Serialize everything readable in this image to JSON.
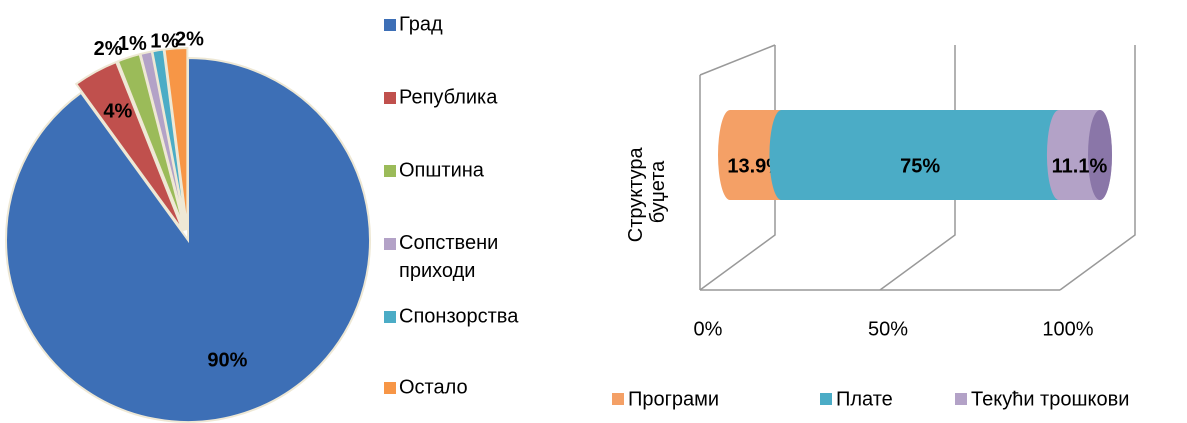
{
  "chart_data": [
    {
      "type": "pie",
      "categories": [
        "Град",
        "Република",
        "Општина",
        "Сопствени приходи",
        "Спонзорства",
        "Остало"
      ],
      "values": [
        90,
        4,
        2,
        1,
        1,
        2
      ],
      "value_labels": [
        "90%",
        "4%",
        "2%",
        "1%",
        "1%",
        "2%"
      ],
      "colors": [
        "#3d6fb6",
        "#c0504d",
        "#9bbb59",
        "#b3a2c7",
        "#4bacc6",
        "#f79646"
      ],
      "legend": "right"
    },
    {
      "type": "bar3d",
      "categories": [
        "Структура буџета"
      ],
      "series": [
        {
          "name": "Програми",
          "color": "#f4a066",
          "values": [
            13.9
          ],
          "value_labels": [
            "13.9%"
          ]
        },
        {
          "name": "Плате",
          "color": "#4bacc6",
          "values": [
            75
          ],
          "value_labels": [
            "75%"
          ]
        },
        {
          "name": "Текући трошкови",
          "color": "#b3a2c7",
          "values": [
            11.1
          ],
          "value_labels": [
            "11.1%"
          ]
        }
      ],
      "xlim": [
        0,
        100
      ],
      "xticks": [
        {
          "value": 0,
          "label": "0%"
        },
        {
          "value": 50,
          "label": "50%"
        },
        {
          "value": 100,
          "label": "100%"
        }
      ],
      "grid": true,
      "legend": "bottom"
    }
  ]
}
